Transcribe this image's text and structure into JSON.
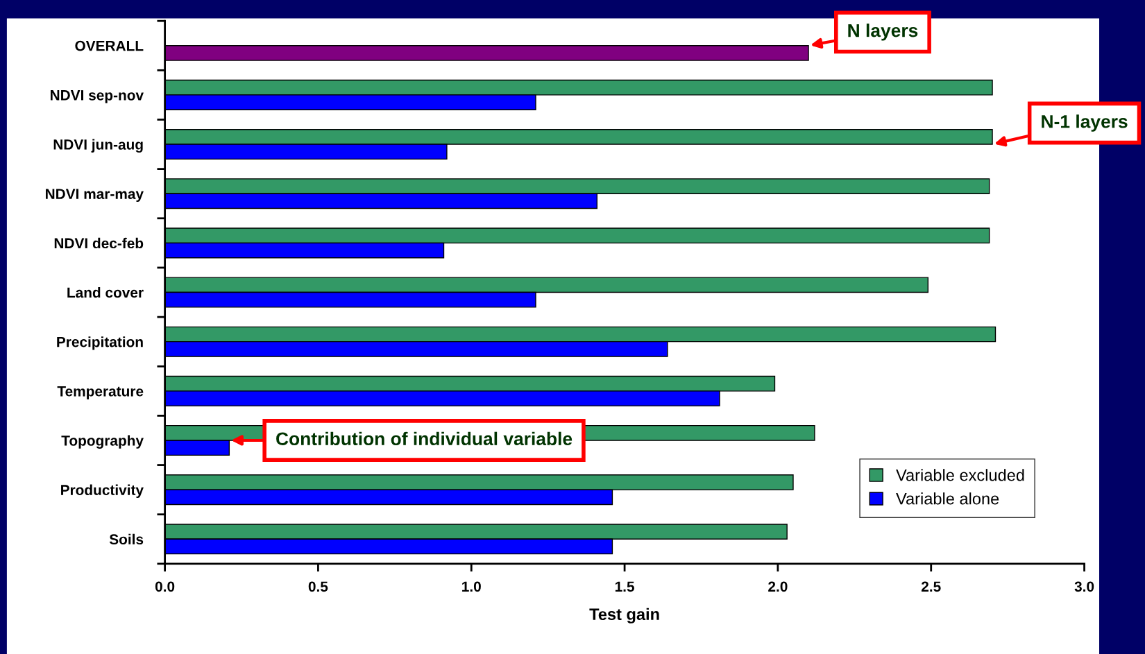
{
  "chart_data": {
    "type": "bar",
    "orientation": "horizontal",
    "categories": [
      "OVERALL",
      "NDVI sep-nov",
      "NDVI jun-aug",
      "NDVI mar-may",
      "NDVI dec-feb",
      "Land cover",
      "Precipitation",
      "Temperature",
      "Topography",
      "Productivity",
      "Soils"
    ],
    "series": [
      {
        "name": "Variable excluded",
        "color": "#339966",
        "values": [
          null,
          2.7,
          2.7,
          2.69,
          2.69,
          2.49,
          2.71,
          1.99,
          2.12,
          2.05,
          2.03
        ]
      },
      {
        "name": "Variable alone",
        "color": "#0000ff",
        "colors": [
          "#800080",
          "#0000ff",
          "#0000ff",
          "#0000ff",
          "#0000ff",
          "#0000ff",
          "#0000ff",
          "#0000ff",
          "#0000ff",
          "#0000ff",
          "#0000ff"
        ],
        "values": [
          2.1,
          1.21,
          0.92,
          1.41,
          0.91,
          1.21,
          1.64,
          1.81,
          0.21,
          1.46,
          1.46
        ]
      }
    ],
    "xlabel": "Test gain",
    "xlim": [
      0,
      3.0
    ],
    "xticks": [
      {
        "value": 0,
        "label": "0.0"
      },
      0.5,
      {
        "value": 1,
        "label": "1.0"
      },
      1.5,
      {
        "value": 2,
        "label": "2.0"
      },
      2.5,
      {
        "value": 3,
        "label": "3.0"
      }
    ],
    "grid": false,
    "legend": "bottom right",
    "annotations": [
      {
        "text": "N layers",
        "x": 2.1,
        "y": "OVERALL"
      },
      {
        "text": "N-1 layers",
        "x": 2.7,
        "y": "NDVI jun-aug"
      },
      {
        "text": "Contribution of individual variable",
        "x": 0.21,
        "y": "Topography"
      }
    ]
  }
}
